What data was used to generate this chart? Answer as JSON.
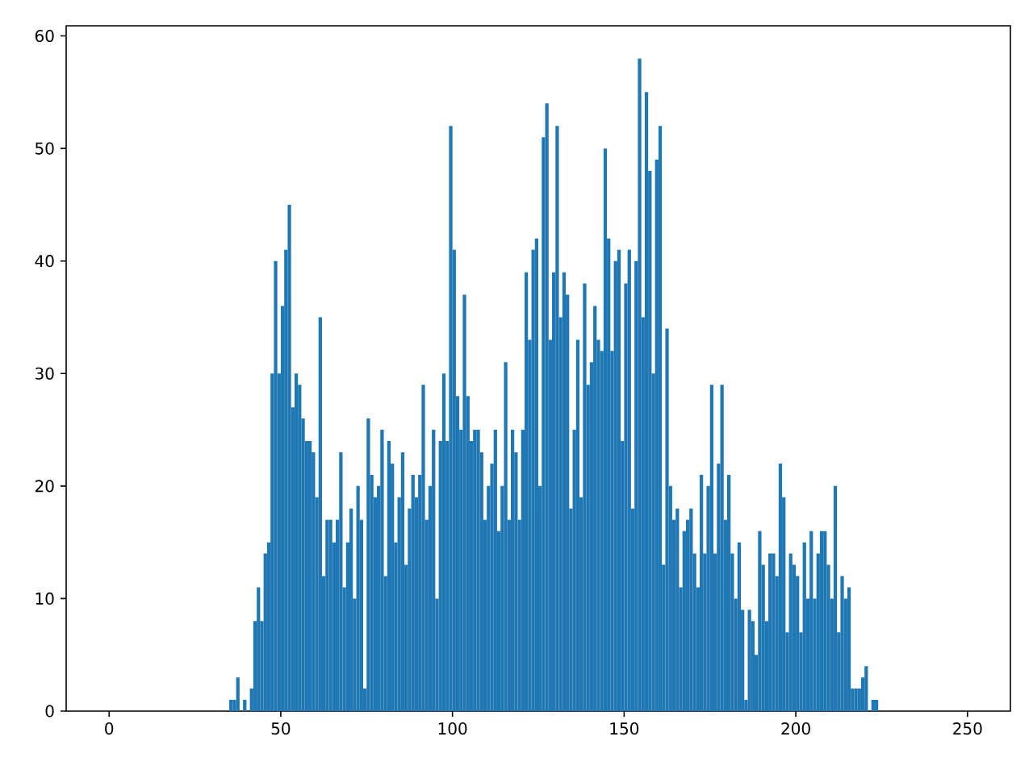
{
  "chart_data": {
    "type": "histogram",
    "color": "#1f77b4",
    "bins": [
      35,
      36,
      37,
      38,
      39,
      40,
      41,
      42,
      43,
      44,
      45,
      46,
      47,
      48,
      49,
      50,
      51,
      52,
      53,
      54,
      55,
      56,
      57,
      58,
      59,
      60,
      61,
      62,
      63,
      64,
      65,
      66,
      67,
      68,
      69,
      70,
      71,
      72,
      73,
      74,
      75,
      76,
      77,
      78,
      79,
      80,
      81,
      82,
      83,
      84,
      85,
      86,
      87,
      88,
      89,
      90,
      91,
      92,
      93,
      94,
      95,
      96,
      97,
      98,
      99,
      100,
      101,
      102,
      103,
      104,
      105,
      106,
      107,
      108,
      109,
      110,
      111,
      112,
      113,
      114,
      115,
      116,
      117,
      118,
      119,
      120,
      121,
      122,
      123,
      124,
      125,
      126,
      127,
      128,
      129,
      130,
      131,
      132,
      133,
      134,
      135,
      136,
      137,
      138,
      139,
      140,
      141,
      142,
      143,
      144,
      145,
      146,
      147,
      148,
      149,
      150,
      151,
      152,
      153,
      154,
      155,
      156,
      157,
      158,
      159,
      160,
      161,
      162,
      163,
      164,
      165,
      166,
      167,
      168,
      169,
      170,
      171,
      172,
      173,
      174,
      175,
      176,
      177,
      178,
      179,
      180,
      181,
      182,
      183,
      184,
      185,
      186,
      187,
      188,
      189,
      190,
      191,
      192,
      193,
      194,
      195,
      196,
      197,
      198,
      199,
      200,
      201,
      202,
      203,
      204,
      205,
      206,
      207,
      208,
      209,
      210,
      211,
      212,
      213,
      214,
      215,
      216,
      217,
      218,
      219,
      220,
      221,
      222,
      223,
      224
    ],
    "values": [
      1,
      1,
      3,
      0,
      1,
      0,
      2,
      8,
      11,
      8,
      14,
      15,
      30,
      40,
      30,
      36,
      41,
      45,
      27,
      30,
      29,
      26,
      24,
      24,
      23,
      19,
      35,
      12,
      17,
      17,
      15,
      17,
      23,
      11,
      15,
      18,
      10,
      20,
      17,
      2,
      26,
      21,
      19,
      20,
      25,
      12,
      24,
      22,
      15,
      19,
      23,
      13,
      18,
      21,
      19,
      21,
      29,
      17,
      20,
      25,
      10,
      24,
      30,
      24,
      52,
      41,
      28,
      25,
      37,
      28,
      24,
      25,
      25,
      23,
      17,
      20,
      22,
      25,
      16,
      20,
      31,
      17,
      25,
      23,
      17,
      25,
      39,
      33,
      41,
      42,
      20,
      51,
      54,
      33,
      39,
      52,
      35,
      39,
      37,
      18,
      25,
      33,
      19,
      38,
      29,
      31,
      36,
      33,
      32,
      50,
      42,
      32,
      40,
      41,
      24,
      38,
      41,
      18,
      40,
      58,
      35,
      55,
      48,
      30,
      49,
      52,
      13,
      34,
      20,
      17,
      18,
      11,
      16,
      17,
      18,
      14,
      11,
      21,
      14,
      20,
      29,
      14,
      22,
      29,
      17,
      21,
      14,
      10,
      15,
      9,
      1,
      9,
      8,
      5,
      16,
      13,
      8,
      14,
      14,
      12,
      22,
      19,
      7,
      14,
      13,
      12,
      7,
      15,
      10,
      16,
      10,
      14,
      16,
      16,
      13,
      10,
      20,
      7,
      12,
      10,
      11,
      2,
      2,
      2,
      3,
      4,
      0,
      1,
      1
    ],
    "xlim": [
      -12.5,
      262.5
    ],
    "ylim": [
      0,
      60.9
    ],
    "xticks": [
      0,
      50,
      100,
      150,
      200,
      250
    ],
    "yticks": [
      0,
      10,
      20,
      30,
      40,
      50,
      60
    ],
    "grid": false
  }
}
